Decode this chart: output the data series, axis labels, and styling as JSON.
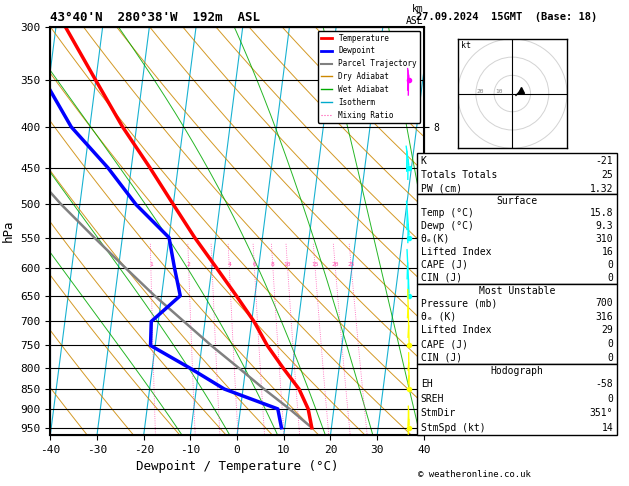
{
  "title_left": "43°40'N  280°38'W  192m  ASL",
  "title_right": "27.09.2024  15GMT  (Base: 18)",
  "xlabel": "Dewpoint / Temperature (°C)",
  "ylabel_left": "hPa",
  "pressure_levels": [
    300,
    350,
    400,
    450,
    500,
    550,
    600,
    650,
    700,
    750,
    800,
    850,
    900,
    950
  ],
  "temp_range": [
    -40,
    38
  ],
  "lcl_pressure": 900,
  "temperature_profile": {
    "pressure": [
      950,
      900,
      850,
      800,
      750,
      700,
      650,
      600,
      550,
      500,
      450,
      400,
      350,
      300
    ],
    "temp": [
      15.8,
      14.5,
      12.0,
      8.0,
      4.0,
      0.5,
      -4.0,
      -9.0,
      -14.5,
      -20.0,
      -26.0,
      -33.0,
      -40.0,
      -48.0
    ]
  },
  "dewpoint_profile": {
    "pressure": [
      950,
      900,
      850,
      800,
      750,
      700,
      650,
      600,
      550,
      500,
      450,
      400,
      350,
      300
    ],
    "dewp": [
      9.3,
      8.0,
      -4.0,
      -12.0,
      -21.0,
      -21.5,
      -16.0,
      -18.0,
      -20.0,
      -28.0,
      -35.0,
      -44.0,
      -51.0,
      -58.0
    ]
  },
  "parcel_trajectory": {
    "pressure": [
      950,
      900,
      850,
      800,
      750,
      700,
      650,
      600,
      550,
      500,
      450,
      400,
      350,
      300
    ],
    "temp": [
      15.8,
      10.5,
      4.5,
      -1.5,
      -8.0,
      -14.5,
      -21.5,
      -28.5,
      -36.0,
      -44.0,
      -52.0,
      -61.0,
      -71.0,
      -82.0
    ]
  },
  "mixing_ratios": [
    1,
    2,
    3,
    4,
    6,
    8,
    10,
    15,
    20,
    25
  ],
  "skew_factor": 22,
  "colors": {
    "temperature": "#ff0000",
    "dewpoint": "#0000ff",
    "parcel": "#808080",
    "dry_adiabat": "#cc8800",
    "wet_adiabat": "#00aa00",
    "isotherm": "#00aacc",
    "mixing_ratio": "#ff44aa",
    "background": "#ffffff",
    "gridline": "#000000"
  },
  "km_ticks": {
    "1": 950,
    "2": 800,
    "3": 700,
    "4": 600,
    "5": 550,
    "6": 500,
    "7": 450,
    "8": 400
  },
  "info_K": "-21",
  "info_TT": "25",
  "info_PW": "1.32",
  "info_surf_temp": "15.8",
  "info_surf_dewp": "9.3",
  "info_surf_thetae": "310",
  "info_surf_li": "16",
  "info_surf_cape": "0",
  "info_surf_cin": "0",
  "info_mu_pres": "700",
  "info_mu_thetae": "316",
  "info_mu_li": "29",
  "info_mu_cape": "0",
  "info_mu_cin": "0",
  "info_eh": "-58",
  "info_sreh": "0",
  "info_stmdir": "351°",
  "info_stmspd": "14",
  "copyright": "© weatheronline.co.uk"
}
